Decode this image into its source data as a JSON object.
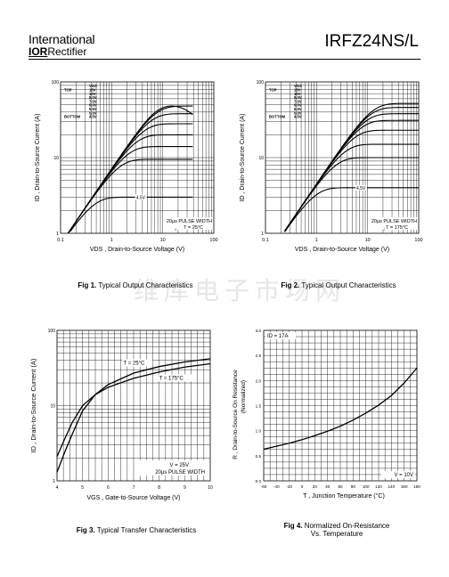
{
  "header": {
    "company_line1": "International",
    "company_line2_logo": "IOR",
    "company_line2_rest": "Rectifier",
    "part_number": "IRFZ24NS/L"
  },
  "watermark": "维库电子市场网",
  "chart_data": [
    {
      "type": "line",
      "id": "fig1",
      "title": "",
      "xlabel": "V_DS , Drain-to-Source Voltage (V)",
      "ylabel": "I_D , Drain-to-Source Current (A)",
      "x_scale": "log",
      "y_scale": "log",
      "xlim": [
        0.1,
        100
      ],
      "ylim": [
        1,
        100
      ],
      "x_ticks": [
        "0.1",
        "1",
        "10",
        "100"
      ],
      "y_ticks": [
        "1",
        "10",
        "100"
      ],
      "legend_header": "VGS",
      "legend_top_label": "TOP",
      "legend_bottom_label": "BOTTOM",
      "legend_entries": [
        "15V",
        "10V",
        "8.0V",
        "7.0V",
        "6.0V",
        "5.5V",
        "5.0V",
        "4.5V"
      ],
      "curve_label": "4.5V",
      "annotation_lines": [
        "20µs PULSE WIDTH",
        "T  = 25°C"
      ],
      "series": [
        {
          "name": "15V",
          "sat": 55
        },
        {
          "name": "10V",
          "sat": 48
        },
        {
          "name": "8.0V",
          "sat": 38
        },
        {
          "name": "7.0V",
          "sat": 28
        },
        {
          "name": "6.0V",
          "sat": 20
        },
        {
          "name": "5.5V",
          "sat": 14
        },
        {
          "name": "5.0V",
          "sat": 9.5
        },
        {
          "name": "4.5V",
          "sat": 3.0
        }
      ],
      "caption_fig": "Fig 1.",
      "caption_text": "Typical Output Characteristics"
    },
    {
      "type": "line",
      "id": "fig2",
      "title": "",
      "xlabel": "V_DS , Drain-to-Source Voltage (V)",
      "ylabel": "I_D , Drain-to-Source Current (A)",
      "x_scale": "log",
      "y_scale": "log",
      "xlim": [
        0.1,
        100
      ],
      "ylim": [
        1,
        100
      ],
      "x_ticks": [
        "0.1",
        "1",
        "10",
        "100"
      ],
      "y_ticks": [
        "1",
        "10",
        "100"
      ],
      "legend_header": "VGS",
      "legend_top_label": "TOP",
      "legend_bottom_label": "BOTTOM",
      "legend_entries": [
        "15V",
        "10V",
        "8.0V",
        "7.0V",
        "6.0V",
        "5.5V",
        "5.0V",
        "4.5V"
      ],
      "curve_label": "4.5V",
      "annotation_lines": [
        "20µs PULSE WIDTH",
        "T  = 175°C"
      ],
      "series": [
        {
          "name": "15V",
          "sat": 52
        },
        {
          "name": "10V",
          "sat": 46
        },
        {
          "name": "8.0V",
          "sat": 38
        },
        {
          "name": "7.0V",
          "sat": 31
        },
        {
          "name": "6.0V",
          "sat": 23
        },
        {
          "name": "5.5V",
          "sat": 15
        },
        {
          "name": "5.0V",
          "sat": 10
        },
        {
          "name": "4.5V",
          "sat": 4.0
        }
      ],
      "caption_fig": "Fig 2.",
      "caption_text": "Typical Output Characteristics"
    },
    {
      "type": "line",
      "id": "fig3",
      "title": "",
      "xlabel": "V_GS , Gate-to-Source Voltage (V)",
      "ylabel": "I_D , Drain-to-Source Current (A)",
      "x_scale": "linear",
      "y_scale": "log",
      "xlim": [
        4,
        10
      ],
      "ylim": [
        1,
        100
      ],
      "x_ticks": [
        "4",
        "5",
        "6",
        "7",
        "8",
        "9",
        "10"
      ],
      "y_ticks": [
        "1",
        "10",
        "100"
      ],
      "annotation_lines": [
        "V  = 25V",
        "20µs PULSE WIDTH"
      ],
      "series": [
        {
          "name": "T  = 25°C",
          "x": [
            4.0,
            4.3,
            4.6,
            5.0,
            5.5,
            6.0,
            7.0,
            8.0,
            9.0,
            10.0
          ],
          "y": [
            1.3,
            2.4,
            4.2,
            8.5,
            14.0,
            19.0,
            27.0,
            33.0,
            38.0,
            42.0
          ]
        },
        {
          "name": "T  = 175°C",
          "x": [
            4.0,
            4.3,
            4.6,
            5.0,
            5.5,
            6.0,
            7.0,
            8.0,
            9.0,
            10.0
          ],
          "y": [
            2.1,
            3.6,
            6.0,
            10.0,
            14.0,
            17.5,
            23.0,
            28.0,
            32.5,
            36.0
          ]
        }
      ],
      "caption_fig": "Fig 3.",
      "caption_text": "Typical Transfer Characteristics"
    },
    {
      "type": "line",
      "id": "fig4",
      "title": "",
      "xlabel": "T  , Junction Temperature (°C)",
      "ylabel_lines": [
        "R       , Drain-to-Source On Resistance",
        "(Normalized)"
      ],
      "x_scale": "linear",
      "y_scale": "linear",
      "xlim": [
        -60,
        180
      ],
      "ylim": [
        0.0,
        3.0
      ],
      "x_ticks": [
        "-60",
        "-40",
        "-20",
        "0",
        "20",
        "40",
        "60",
        "80",
        "100",
        "120",
        "140",
        "160",
        "180"
      ],
      "y_ticks": [
        "0.0",
        "0.5",
        "1.0",
        "1.5",
        "2.0",
        "2.5",
        "3.0"
      ],
      "annotation_lines": [
        "ID  =  17A",
        "V    = 10V"
      ],
      "series": [
        {
          "name": "RDS(on)",
          "x": [
            -60,
            -40,
            -20,
            0,
            20,
            40,
            60,
            80,
            100,
            120,
            140,
            160,
            180
          ],
          "y": [
            0.63,
            0.69,
            0.75,
            0.82,
            0.9,
            0.99,
            1.09,
            1.21,
            1.35,
            1.51,
            1.7,
            1.95,
            2.25
          ]
        }
      ],
      "caption_fig": "Fig 4.",
      "caption_text_lines": [
        "Normalized On-Resistance",
        "Vs. Temperature"
      ]
    }
  ]
}
